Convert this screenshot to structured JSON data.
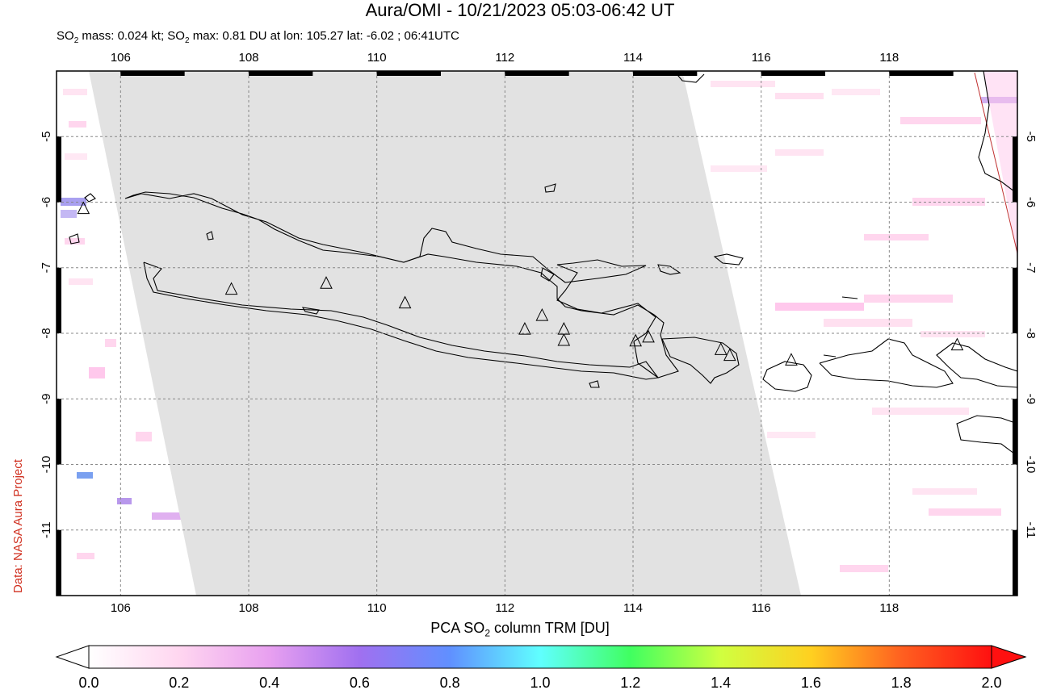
{
  "header": {
    "title": "Aura/OMI - 10/21/2023 05:03-06:42 UT",
    "subtitle_prefix": "SO",
    "subtitle_sub": "2",
    "subtitle_mid": " mass: 0.024 kt; SO",
    "subtitle_sub2": "2",
    "subtitle_rest": " max: 0.81 DU at lon: 105.27 lat: -6.02 ; 06:41UTC"
  },
  "credit": "Data: NASA Aura Project",
  "map": {
    "lon_range": [
      105,
      120
    ],
    "lat_range": [
      -12,
      -4
    ],
    "lon_ticks": [
      "106",
      "108",
      "110",
      "112",
      "114",
      "116",
      "118"
    ],
    "lat_ticks": [
      "-5",
      "-6",
      "-7",
      "-8",
      "-9",
      "-10",
      "-11"
    ],
    "volcanoes": [
      {
        "lon": 105.42,
        "lat": -6.1
      },
      {
        "lon": 107.73,
        "lat": -7.33
      },
      {
        "lon": 109.21,
        "lat": -7.24
      },
      {
        "lon": 110.44,
        "lat": -7.54
      },
      {
        "lon": 112.31,
        "lat": -7.94
      },
      {
        "lon": 112.58,
        "lat": -7.73
      },
      {
        "lon": 112.92,
        "lat": -7.94
      },
      {
        "lon": 112.92,
        "lat": -8.11
      },
      {
        "lon": 114.04,
        "lat": -8.12
      },
      {
        "lon": 114.24,
        "lat": -8.06
      },
      {
        "lon": 115.37,
        "lat": -8.25
      },
      {
        "lon": 115.51,
        "lat": -8.34
      },
      {
        "lon": 116.47,
        "lat": -8.41
      },
      {
        "lon": 119.06,
        "lat": -8.18
      }
    ]
  },
  "colorbar": {
    "title_prefix": "PCA SO",
    "title_sub": "2",
    "title_rest": " column TRM [DU]",
    "ticks": [
      "0.0",
      "0.2",
      "0.4",
      "0.6",
      "0.8",
      "1.0",
      "1.2",
      "1.4",
      "1.6",
      "1.8",
      "2.0"
    ],
    "colors": [
      "#ffffff",
      "#ffd6f0",
      "#e8a0f0",
      "#a070f0",
      "#6090ff",
      "#60ffff",
      "#40ff60",
      "#d0ff40",
      "#ffd020",
      "#ff6020",
      "#ff1010"
    ]
  }
}
